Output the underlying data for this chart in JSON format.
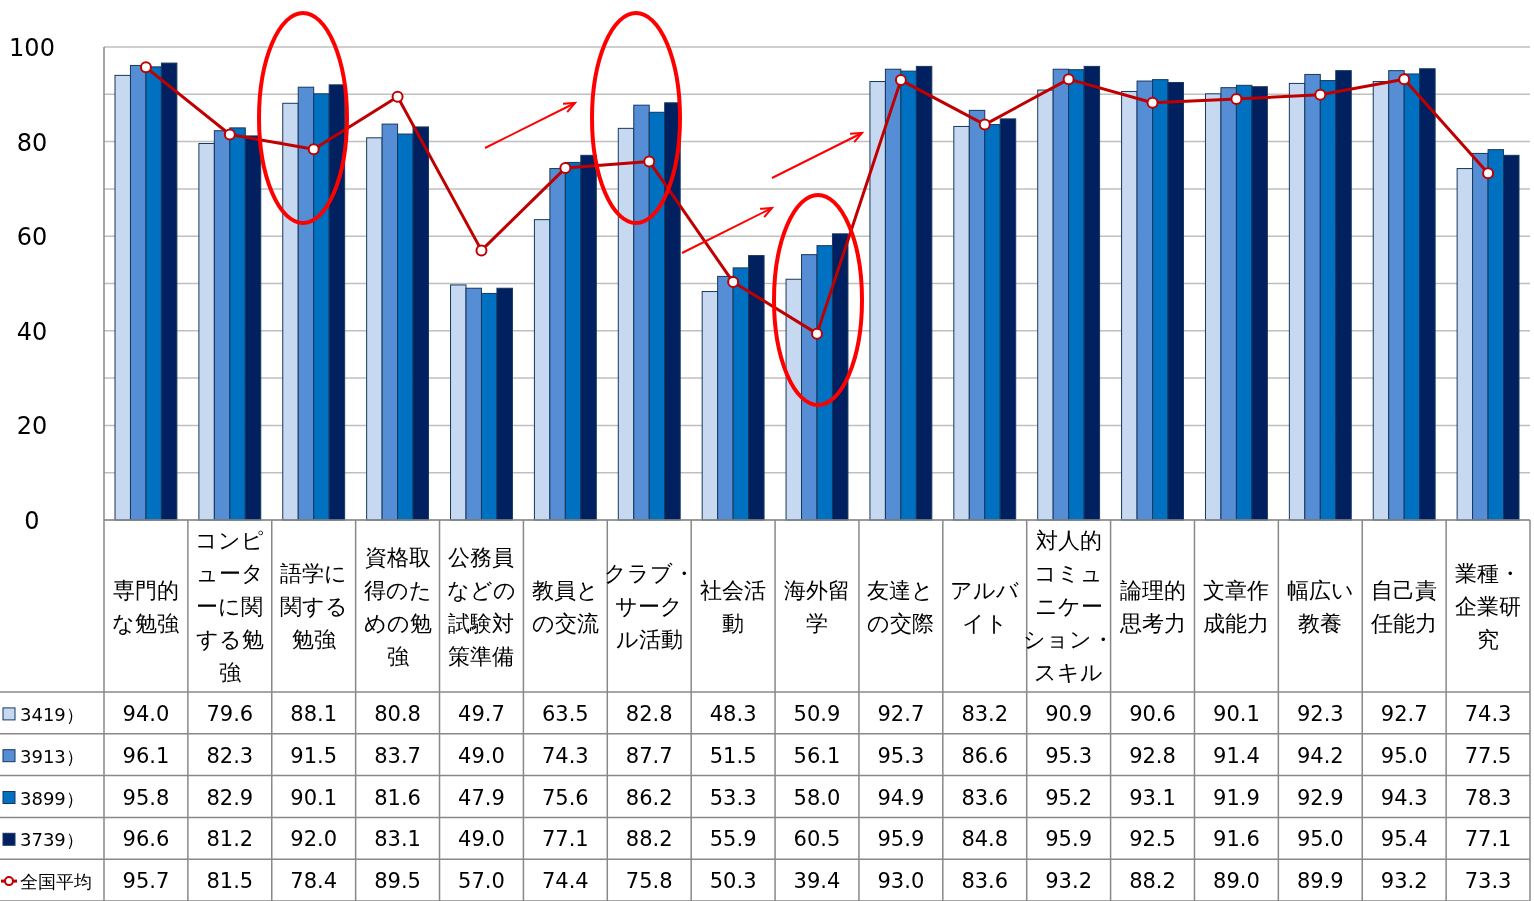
{
  "chart_data": {
    "type": "bar",
    "categories": [
      "専門的な勉強",
      "コンピューターに関する勉強",
      "語学に関する勉強",
      "資格取得のための勉強",
      "公務員などの試験対策準備",
      "教員との交流",
      "クラブ・サークル活動",
      "社会活動",
      "海外留学",
      "友達との交際",
      "アルバイト",
      "対人的コミュニケーション・スキル",
      "論理的思考力",
      "文章作成能力",
      "幅広い教養",
      "自己責任能力",
      "業種・企業研究"
    ],
    "series": [
      {
        "name": "3419）",
        "color": "#c6d9f1",
        "values": [
          94.0,
          79.6,
          88.1,
          80.8,
          49.7,
          63.5,
          82.8,
          48.3,
          50.9,
          92.7,
          83.2,
          90.9,
          90.6,
          90.1,
          92.3,
          92.7,
          74.3
        ],
        "value_labels": [
          "94.0",
          "79.6",
          "88.1",
          "80.8",
          "49.7",
          "63.5",
          "82.8",
          "48.3",
          "50.9",
          "92.7",
          "83.2",
          "90.9",
          "90.6",
          "90.1",
          "92.3",
          "92.7",
          "74.3"
        ]
      },
      {
        "name": "3913）",
        "color": "#558ed5",
        "values": [
          96.1,
          82.3,
          91.5,
          83.7,
          49.0,
          74.3,
          87.7,
          51.5,
          56.1,
          95.3,
          86.6,
          95.3,
          92.8,
          91.4,
          94.2,
          95.0,
          77.5
        ],
        "value_labels": [
          "96.1",
          "82.3",
          "91.5",
          "83.7",
          "49.0",
          "74.3",
          "87.7",
          "51.5",
          "56.1",
          "95.3",
          "86.6",
          "95.3",
          "92.8",
          "91.4",
          "94.2",
          "95.0",
          "77.5"
        ]
      },
      {
        "name": "3899）",
        "color": "#0070c0",
        "values": [
          95.8,
          82.9,
          90.1,
          81.6,
          47.9,
          75.6,
          86.2,
          53.3,
          58.0,
          94.9,
          83.6,
          95.2,
          93.1,
          91.9,
          92.9,
          94.3,
          78.3
        ],
        "value_labels": [
          "95.8",
          "82.9",
          "90.1",
          "81.6",
          "47.9",
          "75.6",
          "86.2",
          "53.3",
          "58.0",
          "94.9",
          "83.6",
          "95.2",
          "93.1",
          "91.9",
          "92.9",
          "94.3",
          "78.3"
        ]
      },
      {
        "name": "3739）",
        "color": "#002060",
        "values": [
          96.6,
          81.2,
          92.0,
          83.1,
          49.0,
          77.1,
          88.2,
          55.9,
          60.5,
          95.9,
          84.8,
          95.9,
          92.5,
          91.6,
          95.0,
          95.4,
          77.1
        ],
        "value_labels": [
          "96.6",
          "81.2",
          "92.0",
          "83.1",
          "49.0",
          "77.1",
          "88.2",
          "55.9",
          "60.5",
          "95.9",
          "84.8",
          "95.9",
          "92.5",
          "91.6",
          "95.0",
          "95.4",
          "77.1"
        ]
      },
      {
        "name": "全国平均",
        "type": "line",
        "color": "#c00000",
        "marker": "circle",
        "values": [
          95.7,
          81.5,
          78.4,
          89.5,
          57.0,
          74.4,
          75.8,
          50.3,
          39.4,
          93.0,
          83.6,
          93.2,
          88.2,
          89.0,
          89.9,
          93.2,
          73.3
        ],
        "value_labels": [
          "95.7",
          "81.5",
          "78.4",
          "89.5",
          "57.0",
          "74.4",
          "75.8",
          "50.3",
          "39.4",
          "93.0",
          "83.6",
          "93.2",
          "88.2",
          "89.0",
          "89.9",
          "93.2",
          "73.3"
        ]
      }
    ],
    "ylim": [
      0,
      100
    ],
    "yticks": [
      0,
      {
        "value": 10,
        "label": null
      },
      20,
      {
        "value": 30,
        "label": null
      },
      40,
      {
        "value": 50,
        "label": null
      },
      60,
      {
        "value": 70,
        "label": null
      },
      80,
      {
        "value": 90,
        "label": null
      },
      100
    ],
    "grid": "y",
    "legend": "bottom left"
  }
}
